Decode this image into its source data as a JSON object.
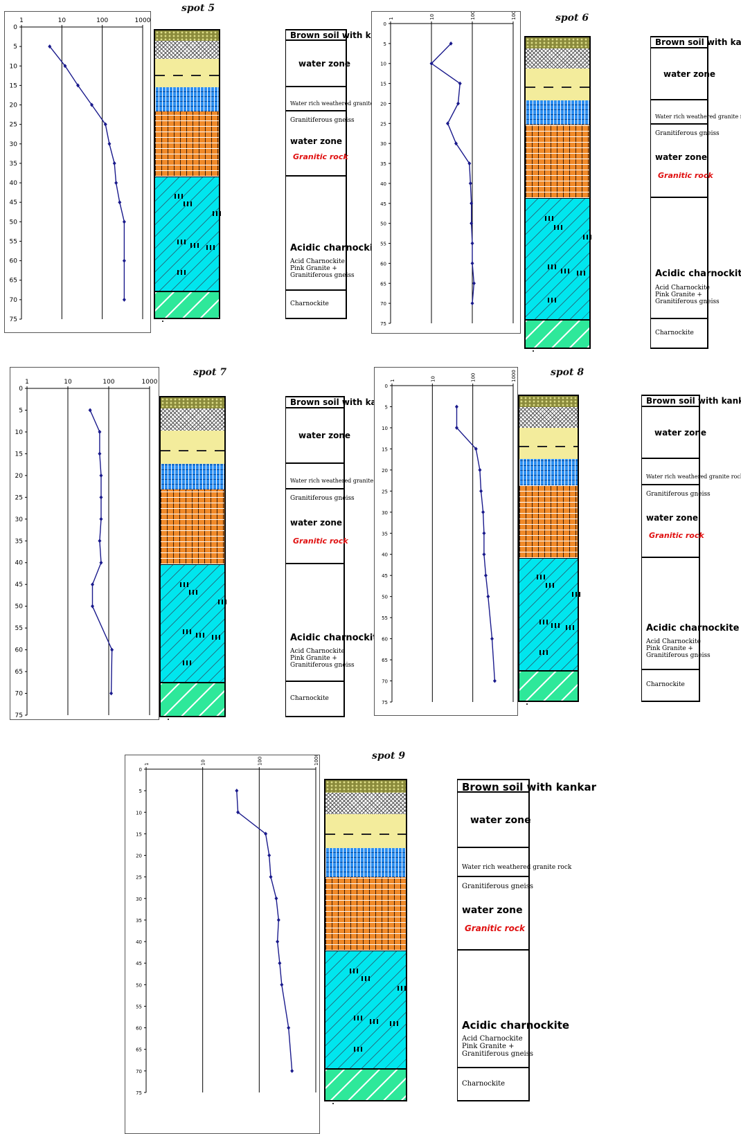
{
  "colors": {
    "line": "#1a1a8c",
    "soil": "#8b8b3c",
    "gravel": "#555555",
    "water_zone": "#f3ec9c",
    "weathered": "#2c8ef0",
    "gneiss": "#f08a2a",
    "charnockite": "#00e6ee",
    "charnockite_base": "#2ee89a",
    "red_text": "#e01010"
  },
  "lithology_labels": {
    "soil": "Brown soil with kankar",
    "water_zone": "water zone",
    "weathered": "Water rich weathered granite rock",
    "gneiss": "Granitiferous gneiss",
    "water_zone_2": "water zone",
    "granitic": "Granitic rock",
    "acidic": "Acidic charnockite",
    "acid_lines": [
      "Acid Charnockite",
      "Pink Granite +",
      "Granitiferous gneiss"
    ],
    "charnockite": "Charnockite"
  },
  "chart_data": [
    {
      "type": "line",
      "title": "spot 5",
      "x_scale": "log",
      "x_tick_labels": [
        "1",
        "10",
        "100",
        "1000"
      ],
      "y_ticks": [
        0,
        5,
        10,
        15,
        20,
        25,
        30,
        35,
        40,
        45,
        50,
        55,
        60,
        65,
        70,
        75
      ],
      "ylim": [
        0,
        75
      ],
      "y_inverted": true,
      "grid": "vertical lines at decades",
      "series": [
        {
          "x": [
            5,
            12,
            25,
            55,
            120,
            150,
            200,
            220,
            270,
            350,
            350,
            350
          ],
          "y": [
            5,
            10,
            15,
            20,
            25,
            30,
            35,
            40,
            45,
            50,
            60,
            70
          ]
        }
      ]
    },
    {
      "type": "line",
      "title": "spot 6",
      "x_scale": "log",
      "x_tick_labels": [
        "1",
        "10",
        "100",
        "1000"
      ],
      "y_ticks": [
        0,
        5,
        10,
        15,
        20,
        25,
        30,
        35,
        40,
        45,
        50,
        55,
        60,
        65,
        70,
        75
      ],
      "ylim": [
        0,
        75
      ],
      "y_inverted": true,
      "grid": "vertical lines at decades",
      "series": [
        {
          "x": [
            30,
            10,
            50,
            45,
            25,
            40,
            85,
            90,
            95,
            95,
            100,
            100,
            110,
            100
          ],
          "y": [
            5,
            10,
            15,
            20,
            25,
            30,
            35,
            40,
            45,
            50,
            55,
            60,
            65,
            70
          ]
        }
      ]
    },
    {
      "type": "line",
      "title": "spot 7",
      "x_scale": "log",
      "x_tick_labels": [
        "1",
        "10",
        "100",
        "1000"
      ],
      "y_ticks": [
        0,
        5,
        10,
        15,
        20,
        25,
        30,
        35,
        40,
        45,
        50,
        55,
        60,
        65,
        70,
        75
      ],
      "ylim": [
        0,
        75
      ],
      "y_inverted": true,
      "grid": "vertical lines at decades",
      "series": [
        {
          "x": [
            35,
            60,
            60,
            65,
            65,
            65,
            60,
            65,
            40,
            40,
            120,
            115
          ],
          "y": [
            5,
            10,
            15,
            20,
            25,
            30,
            35,
            40,
            45,
            50,
            60,
            70
          ]
        }
      ]
    },
    {
      "type": "line",
      "title": "spot 8",
      "x_scale": "log",
      "x_tick_labels": [
        "1",
        "10",
        "100",
        "1000"
      ],
      "y_ticks": [
        0,
        5,
        10,
        15,
        20,
        25,
        30,
        35,
        40,
        45,
        50,
        55,
        60,
        65,
        70,
        75
      ],
      "ylim": [
        0,
        75
      ],
      "y_inverted": true,
      "grid": "vertical lines at decades",
      "series": [
        {
          "x": [
            40,
            40,
            120,
            150,
            160,
            180,
            190,
            190,
            210,
            240,
            300,
            350
          ],
          "y": [
            5,
            10,
            15,
            20,
            25,
            30,
            35,
            40,
            45,
            50,
            60,
            70
          ]
        }
      ]
    },
    {
      "type": "line",
      "title": "spot 9",
      "x_scale": "log",
      "x_tick_labels": [
        "1",
        "10",
        "100",
        "1000"
      ],
      "y_ticks": [
        0,
        5,
        10,
        15,
        20,
        25,
        30,
        35,
        40,
        45,
        50,
        55,
        60,
        65,
        70,
        75
      ],
      "ylim": [
        0,
        75
      ],
      "y_inverted": true,
      "grid": "vertical lines at decades",
      "series": [
        {
          "x": [
            40,
            42,
            130,
            150,
            160,
            200,
            220,
            210,
            230,
            250,
            330,
            380
          ],
          "y": [
            5,
            10,
            15,
            20,
            25,
            30,
            35,
            40,
            45,
            50,
            60,
            70
          ]
        }
      ]
    }
  ]
}
